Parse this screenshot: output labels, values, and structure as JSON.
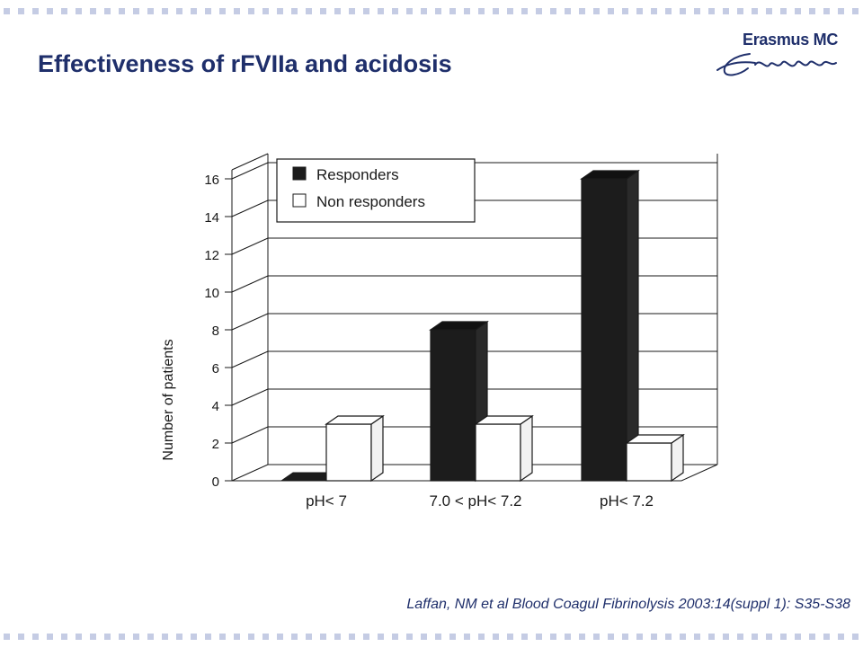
{
  "slide": {
    "title": "Effectiveness of rFVIIa and acidosis",
    "citation": "Laffan, NM et al Blood Coagul Fibrinolysis 2003:14(suppl 1): S35-S38",
    "accent_color": "#1f2f6b",
    "dot_color": "#c5cce4"
  },
  "logo": {
    "text": "Erasmus MC",
    "signature": "Erafmus",
    "icon": "erasmus-signature-logo"
  },
  "chart_data": {
    "type": "bar",
    "ylabel": "Number of patients",
    "xlabel": "",
    "ylim": [
      0,
      16
    ],
    "yticks": [
      "0",
      "2",
      "4",
      "6",
      "8",
      "10",
      "12",
      "14",
      "16"
    ],
    "categories": [
      "pH< 7",
      "7.0 < pH< 7.2",
      "pH< 7.2"
    ],
    "series": [
      {
        "name": "Responders",
        "values": [
          0,
          8,
          16
        ],
        "color": "#1c1c1c"
      },
      {
        "name": "Non responders",
        "values": [
          3,
          3,
          2
        ],
        "color": "#ffffff"
      }
    ],
    "grid": true,
    "legend": "top-left",
    "three_d": true
  }
}
